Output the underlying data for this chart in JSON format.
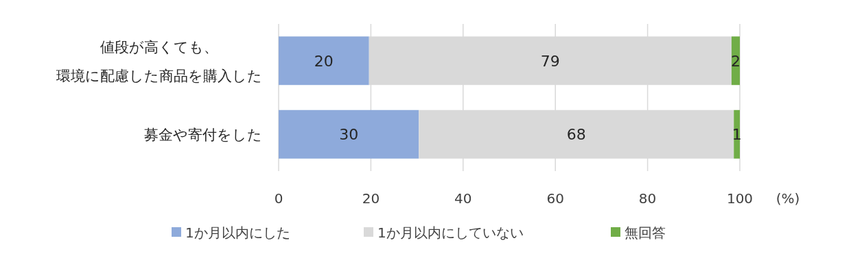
{
  "chart_data": {
    "type": "bar",
    "orientation": "horizontal",
    "stacked": true,
    "categories": [
      "値段が高くても、環境に配慮した商品を購入した",
      "募金や寄付をした"
    ],
    "series": [
      {
        "name": "1か月以内にした",
        "color": "#8eaadb",
        "values": [
          19.6,
          30.4
        ],
        "value_labels": [
          "20",
          "30"
        ]
      },
      {
        "name": "1か月以内にしていない",
        "color": "#d9d9d9",
        "values": [
          78.6,
          68.3
        ],
        "value_labels": [
          "79",
          "68"
        ]
      },
      {
        "name": "無回答",
        "color": "#70ad47",
        "values": [
          1.8,
          1.3
        ],
        "value_labels": [
          "2",
          "1"
        ]
      }
    ],
    "xlabel": "(%)",
    "xlim": [
      0,
      100
    ],
    "xticks": [
      0,
      20,
      40,
      60,
      80,
      100
    ],
    "grid": "x",
    "legend": "bottom"
  }
}
